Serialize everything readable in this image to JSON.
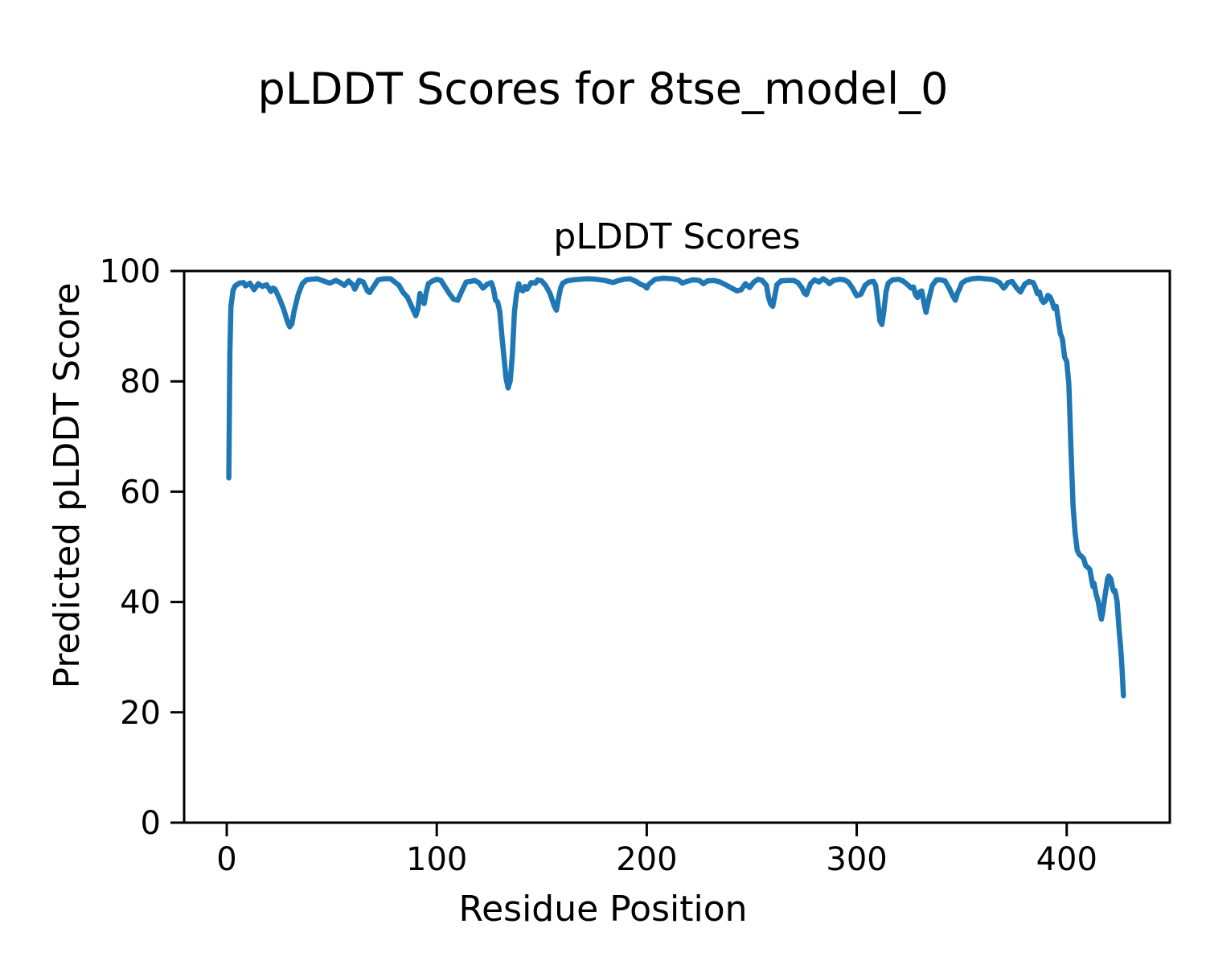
{
  "figure": {
    "suptitle": "pLDDT Scores for 8tse_model_0",
    "axes_title": "pLDDT Scores",
    "xlabel": "Residue Position",
    "ylabel": "Predicted pLDDT Score"
  },
  "chart_data": {
    "type": "line",
    "suptitle": "pLDDT Scores for 8tse_model_0",
    "title": "pLDDT Scores",
    "xlabel": "Residue Position",
    "ylabel": "Predicted pLDDT Score",
    "xlim": [
      -20.3,
      449.1
    ],
    "ylim": [
      0,
      100
    ],
    "xticks": [
      0,
      100,
      200,
      300,
      400
    ],
    "yticks": [
      0,
      20,
      40,
      60,
      80,
      100
    ],
    "grid": false,
    "legend_position": "none",
    "line_color": "#1f77b4",
    "axis_color": "#000000",
    "background_color": "#ffffff",
    "series": [
      {
        "name": "pLDDT",
        "points": [
          [
            1,
            62.5
          ],
          [
            1.5,
            85
          ],
          [
            2,
            93.5
          ],
          [
            3,
            96.5
          ],
          [
            4,
            97.3
          ],
          [
            6,
            97.8
          ],
          [
            8,
            97.9
          ],
          [
            9,
            97.3
          ],
          [
            11,
            97.8
          ],
          [
            13,
            96.6
          ],
          [
            15,
            97.7
          ],
          [
            17,
            97.2
          ],
          [
            19,
            97.5
          ],
          [
            21,
            96.3
          ],
          [
            22,
            96.9
          ],
          [
            23,
            96.7
          ],
          [
            25,
            95.1
          ],
          [
            27,
            93.2
          ],
          [
            29,
            90.7
          ],
          [
            30,
            89.9
          ],
          [
            31,
            90.4
          ],
          [
            32,
            92.6
          ],
          [
            34,
            95.7
          ],
          [
            36,
            97.7
          ],
          [
            38,
            98.4
          ],
          [
            40,
            98.5
          ],
          [
            43,
            98.6
          ],
          [
            46,
            98.2
          ],
          [
            49,
            97.8
          ],
          [
            52,
            98.3
          ],
          [
            54,
            97.9
          ],
          [
            56,
            97.4
          ],
          [
            58,
            98.2
          ],
          [
            60,
            97.5
          ],
          [
            61,
            96.7
          ],
          [
            63,
            98.3
          ],
          [
            65,
            98.0
          ],
          [
            67,
            96.4
          ],
          [
            68,
            96.1
          ],
          [
            70,
            97.2
          ],
          [
            72,
            98.4
          ],
          [
            75,
            98.6
          ],
          [
            78,
            98.6
          ],
          [
            80,
            98.0
          ],
          [
            82,
            97.4
          ],
          [
            84,
            96.1
          ],
          [
            86,
            95.3
          ],
          [
            88,
            93.6
          ],
          [
            90,
            91.9
          ],
          [
            91,
            93.0
          ],
          [
            92,
            95.9
          ],
          [
            93,
            94.9
          ],
          [
            94,
            94.1
          ],
          [
            95,
            96.1
          ],
          [
            96,
            97.7
          ],
          [
            98,
            98.2
          ],
          [
            100,
            98.5
          ],
          [
            102,
            98.3
          ],
          [
            104,
            97.1
          ],
          [
            106,
            95.9
          ],
          [
            108,
            94.9
          ],
          [
            110,
            94.7
          ],
          [
            112,
            96.4
          ],
          [
            114,
            98.0
          ],
          [
            116,
            98.1
          ],
          [
            118,
            98.3
          ],
          [
            120,
            97.9
          ],
          [
            122,
            96.9
          ],
          [
            124,
            97.6
          ],
          [
            126,
            97.9
          ],
          [
            127,
            96.8
          ],
          [
            128,
            94.7
          ],
          [
            129,
            94.4
          ],
          [
            130,
            92.7
          ],
          [
            131,
            88.3
          ],
          [
            132,
            84.4
          ],
          [
            133,
            80.6
          ],
          [
            134,
            78.8
          ],
          [
            135,
            80.1
          ],
          [
            136,
            84.6
          ],
          [
            137,
            92.5
          ],
          [
            138,
            95.9
          ],
          [
            139,
            97.7
          ],
          [
            140,
            96.6
          ],
          [
            141,
            96.4
          ],
          [
            142,
            97.2
          ],
          [
            143,
            96.7
          ],
          [
            145,
            97.9
          ],
          [
            147,
            97.8
          ],
          [
            148,
            98.4
          ],
          [
            150,
            98.2
          ],
          [
            152,
            97.3
          ],
          [
            154,
            95.9
          ],
          [
            156,
            93.6
          ],
          [
            157,
            92.9
          ],
          [
            158,
            95.1
          ],
          [
            159,
            96.9
          ],
          [
            160,
            97.8
          ],
          [
            162,
            98.2
          ],
          [
            165,
            98.4
          ],
          [
            168,
            98.5
          ],
          [
            172,
            98.6
          ],
          [
            176,
            98.5
          ],
          [
            180,
            98.3
          ],
          [
            183,
            98.0
          ],
          [
            184,
            97.9
          ],
          [
            186,
            98.2
          ],
          [
            189,
            98.5
          ],
          [
            192,
            98.6
          ],
          [
            195,
            98.1
          ],
          [
            197,
            97.6
          ],
          [
            199,
            97.3
          ],
          [
            200,
            96.9
          ],
          [
            201,
            97.6
          ],
          [
            204,
            98.5
          ],
          [
            208,
            98.7
          ],
          [
            212,
            98.6
          ],
          [
            215,
            98.4
          ],
          [
            217,
            97.8
          ],
          [
            219,
            98.1
          ],
          [
            222,
            98.4
          ],
          [
            225,
            98.3
          ],
          [
            227,
            97.7
          ],
          [
            229,
            98.2
          ],
          [
            232,
            98.3
          ],
          [
            235,
            98.0
          ],
          [
            238,
            97.4
          ],
          [
            240,
            97.0
          ],
          [
            243,
            96.4
          ],
          [
            245,
            96.6
          ],
          [
            247,
            97.7
          ],
          [
            249,
            97.0
          ],
          [
            251,
            98.0
          ],
          [
            253,
            98.5
          ],
          [
            255,
            98.3
          ],
          [
            257,
            97.4
          ],
          [
            258,
            95.2
          ],
          [
            259,
            94.0
          ],
          [
            260,
            93.6
          ],
          [
            261,
            95.5
          ],
          [
            262,
            97.5
          ],
          [
            264,
            98.2
          ],
          [
            267,
            98.3
          ],
          [
            270,
            98.3
          ],
          [
            272,
            97.9
          ],
          [
            274,
            96.9
          ],
          [
            275,
            96.0
          ],
          [
            276,
            95.7
          ],
          [
            278,
            97.7
          ],
          [
            280,
            98.4
          ],
          [
            282,
            98.0
          ],
          [
            284,
            98.6
          ],
          [
            286,
            98.1
          ],
          [
            287,
            97.7
          ],
          [
            289,
            98.3
          ],
          [
            292,
            98.5
          ],
          [
            294,
            98.4
          ],
          [
            296,
            98.0
          ],
          [
            298,
            96.9
          ],
          [
            300,
            95.5
          ],
          [
            302,
            95.8
          ],
          [
            304,
            97.4
          ],
          [
            306,
            98.0
          ],
          [
            308,
            98.1
          ],
          [
            309,
            97.4
          ],
          [
            310,
            94.5
          ],
          [
            311,
            91.0
          ],
          [
            312,
            90.3
          ],
          [
            313,
            93.0
          ],
          [
            314,
            96.3
          ],
          [
            315,
            97.8
          ],
          [
            317,
            98.4
          ],
          [
            320,
            98.5
          ],
          [
            322,
            98.2
          ],
          [
            324,
            97.6
          ],
          [
            326,
            96.9
          ],
          [
            327,
            97.1
          ],
          [
            328,
            95.7
          ],
          [
            329,
            95.2
          ],
          [
            330,
            96.2
          ],
          [
            331,
            96.4
          ],
          [
            332,
            94.2
          ],
          [
            333,
            92.5
          ],
          [
            334,
            94.4
          ],
          [
            335,
            95.9
          ],
          [
            336,
            97.4
          ],
          [
            338,
            98.4
          ],
          [
            340,
            98.4
          ],
          [
            342,
            98.2
          ],
          [
            344,
            96.9
          ],
          [
            346,
            95.3
          ],
          [
            347,
            94.7
          ],
          [
            348,
            96.0
          ],
          [
            349,
            96.8
          ],
          [
            350,
            97.8
          ],
          [
            352,
            98.3
          ],
          [
            355,
            98.6
          ],
          [
            358,
            98.7
          ],
          [
            361,
            98.6
          ],
          [
            364,
            98.5
          ],
          [
            366,
            98.3
          ],
          [
            368,
            97.9
          ],
          [
            369,
            97.4
          ],
          [
            370,
            96.9
          ],
          [
            371,
            97.3
          ],
          [
            372,
            97.9
          ],
          [
            374,
            98.1
          ],
          [
            376,
            97.0
          ],
          [
            378,
            96.2
          ],
          [
            380,
            97.6
          ],
          [
            382,
            98.1
          ],
          [
            384,
            97.9
          ],
          [
            385,
            97.1
          ],
          [
            386,
            95.9
          ],
          [
            387,
            96.2
          ],
          [
            388,
            94.8
          ],
          [
            389,
            94.3
          ],
          [
            390,
            94.6
          ],
          [
            391,
            95.6
          ],
          [
            392,
            95.3
          ],
          [
            393,
            94.5
          ],
          [
            394,
            93.2
          ],
          [
            395,
            93.6
          ],
          [
            396,
            91.1
          ],
          [
            397,
            88.6
          ],
          [
            397.5,
            88.2
          ],
          [
            398,
            87.6
          ],
          [
            399,
            84.4
          ],
          [
            400,
            83.6
          ],
          [
            401,
            79.5
          ],
          [
            401.5,
            74.0
          ],
          [
            402,
            68.0
          ],
          [
            403,
            57.5
          ],
          [
            404,
            52.5
          ],
          [
            405,
            49.4
          ],
          [
            406,
            48.6
          ],
          [
            407,
            48.3
          ],
          [
            408,
            47.9
          ],
          [
            409,
            46.6
          ],
          [
            410,
            46.3
          ],
          [
            411,
            45.9
          ],
          [
            412,
            43.8
          ],
          [
            412.5,
            42.8
          ],
          [
            413,
            43.4
          ],
          [
            414,
            41.4
          ],
          [
            415,
            40.1
          ],
          [
            416,
            37.9
          ],
          [
            416.5,
            36.9
          ],
          [
            417,
            37.8
          ],
          [
            418,
            40.6
          ],
          [
            419,
            43.0
          ],
          [
            419.5,
            44.3
          ],
          [
            420,
            44.7
          ],
          [
            421,
            44.2
          ],
          [
            422,
            42.3
          ],
          [
            422.5,
            41.9
          ],
          [
            423,
            42.1
          ],
          [
            424,
            40.1
          ],
          [
            424.5,
            37.4
          ],
          [
            425,
            34.6
          ],
          [
            425.5,
            32.5
          ],
          [
            426,
            30.0
          ],
          [
            426.5,
            26.8
          ],
          [
            427,
            23.0
          ]
        ]
      }
    ]
  }
}
